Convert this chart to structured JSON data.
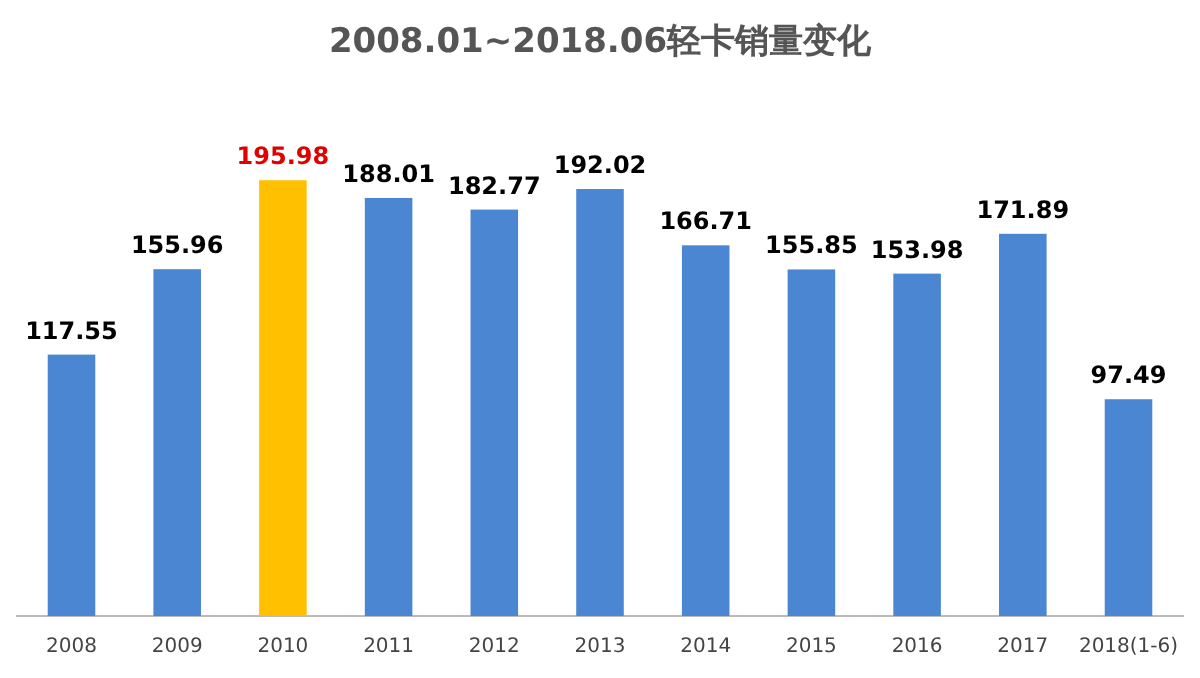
{
  "chart_data": {
    "type": "bar",
    "title": "2008.01~2018.06轻卡销量变化",
    "categories": [
      "2008",
      "2009",
      "2010",
      "2011",
      "2012",
      "2013",
      "2014",
      "2015",
      "2016",
      "2017",
      "2018(1-6)"
    ],
    "values": [
      117.55,
      155.96,
      195.98,
      188.01,
      182.77,
      192.02,
      166.71,
      155.85,
      153.98,
      171.89,
      97.49
    ],
    "colors": [
      "#4a86d2",
      "#4a86d2",
      "#ffc000",
      "#4a86d2",
      "#4a86d2",
      "#4a86d2",
      "#4a86d2",
      "#4a86d2",
      "#4a86d2",
      "#4a86d2",
      "#4a86d2"
    ],
    "data_labels": true
  }
}
